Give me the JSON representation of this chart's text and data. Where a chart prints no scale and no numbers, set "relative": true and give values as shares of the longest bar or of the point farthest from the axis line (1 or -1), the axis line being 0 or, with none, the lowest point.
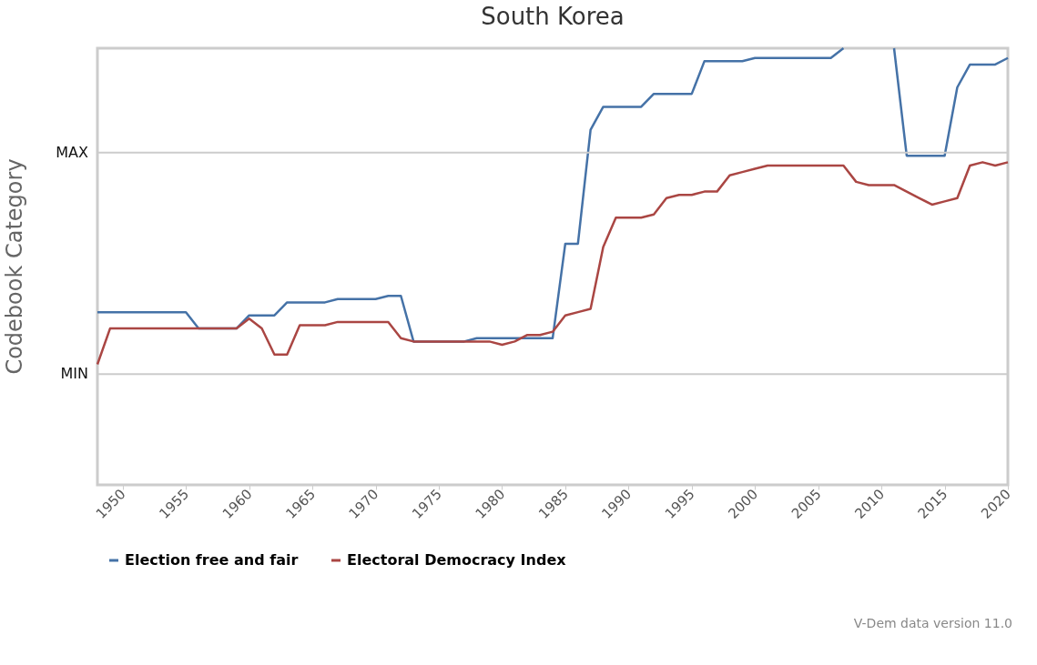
{
  "chart_data": {
    "type": "line",
    "title": "South Korea",
    "ylabel": "Codebook Category",
    "relative": true,
    "x": [
      1948,
      1949,
      1950,
      1951,
      1952,
      1953,
      1954,
      1955,
      1956,
      1957,
      1958,
      1959,
      1960,
      1961,
      1962,
      1963,
      1964,
      1965,
      1966,
      1967,
      1968,
      1969,
      1970,
      1971,
      1972,
      1973,
      1974,
      1975,
      1976,
      1977,
      1978,
      1979,
      1980,
      1981,
      1982,
      1983,
      1984,
      1985,
      1986,
      1987,
      1988,
      1989,
      1990,
      1991,
      1992,
      1993,
      1994,
      1995,
      1996,
      1997,
      1998,
      1999,
      2000,
      2001,
      2002,
      2003,
      2004,
      2005,
      2006,
      2007,
      2008,
      2009,
      2010,
      2011,
      2012,
      2013,
      2014,
      2015,
      2016,
      2017,
      2018,
      2019,
      2020
    ],
    "series": [
      {
        "name": "Election free and fair",
        "color": "#4572a7",
        "values": [
          0.19,
          0.19,
          0.19,
          0.19,
          0.19,
          0.19,
          0.19,
          0.19,
          0.14,
          0.14,
          0.14,
          0.14,
          0.18,
          0.18,
          0.18,
          0.22,
          0.22,
          0.22,
          0.22,
          0.23,
          0.23,
          0.23,
          0.23,
          0.24,
          0.24,
          0.1,
          0.1,
          0.1,
          0.1,
          0.1,
          0.11,
          0.11,
          0.11,
          0.11,
          0.11,
          0.11,
          0.11,
          0.4,
          0.4,
          0.75,
          0.82,
          0.82,
          0.82,
          0.82,
          0.86,
          0.86,
          0.86,
          0.86,
          0.96,
          0.96,
          0.96,
          0.96,
          0.97,
          0.97,
          0.97,
          0.97,
          0.97,
          0.97,
          0.97,
          1,
          null,
          null,
          null,
          1,
          0.67,
          0.67,
          0.67,
          0.67,
          0.88,
          0.95,
          0.95,
          0.95,
          0.97
        ]
      },
      {
        "name": "Electoral Democracy Index",
        "color": "#aa4643",
        "values": [
          0.03,
          0.14,
          0.14,
          0.14,
          0.14,
          0.14,
          0.14,
          0.14,
          0.14,
          0.14,
          0.14,
          0.14,
          0.17,
          0.14,
          0.06,
          0.06,
          0.15,
          0.15,
          0.15,
          0.16,
          0.16,
          0.16,
          0.16,
          0.16,
          0.11,
          0.1,
          0.1,
          0.1,
          0.1,
          0.1,
          0.1,
          0.1,
          0.09,
          0.1,
          0.12,
          0.12,
          0.13,
          0.18,
          0.19,
          0.2,
          0.39,
          0.48,
          0.48,
          0.48,
          0.49,
          0.54,
          0.55,
          0.55,
          0.56,
          0.56,
          0.61,
          0.62,
          0.63,
          0.64,
          0.64,
          0.64,
          0.64,
          0.64,
          0.64,
          0.64,
          0.59,
          0.58,
          0.58,
          0.58,
          0.56,
          0.54,
          0.52,
          0.53,
          0.54,
          0.64,
          0.65,
          0.64,
          0.65
        ]
      }
    ],
    "xlim": [
      1948,
      2020
    ],
    "xticks": [
      1950,
      1955,
      1960,
      1965,
      1970,
      1975,
      1980,
      1985,
      1990,
      1995,
      2000,
      2005,
      2010,
      2015,
      2020
    ],
    "ref_lines": [
      {
        "axis": "y",
        "value": 0.68,
        "label": "MAX",
        "color": "#cccccc"
      },
      {
        "axis": "y",
        "value": 0,
        "label": "MIN",
        "color": "#cccccc"
      }
    ],
    "legend": "bottom",
    "line_style": "solid",
    "annotations": [
      "V-Dem data version 11.0"
    ]
  }
}
